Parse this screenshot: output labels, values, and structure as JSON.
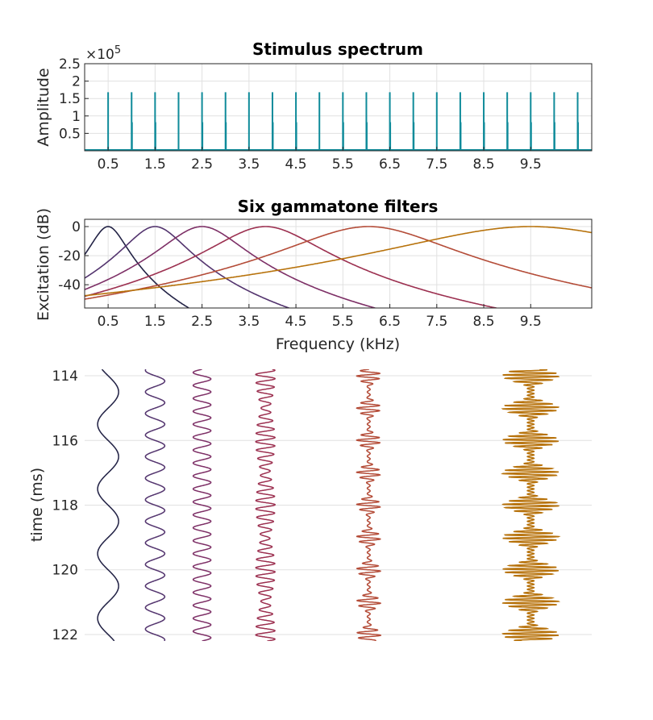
{
  "figure": {
    "spectrum_title": "Stimulus spectrum",
    "filters_title": "Six gammatone filters",
    "spectrum_ylabel": "Amplitude",
    "spectrum_exponent_base": "×10",
    "spectrum_exponent_power": "5",
    "filters_ylabel": "Excitation (dB)",
    "filters_xlabel": "Frequency (kHz)",
    "waveform_ylabel": "time (ms)"
  },
  "chart_data": [
    {
      "type": "bar",
      "title": "Stimulus spectrum",
      "xlabel": "",
      "ylabel": "Amplitude",
      "y_scale_factor": "×10^5",
      "xlim": [
        0,
        10.8
      ],
      "ylim": [
        0,
        250000
      ],
      "xticks": [
        0.5,
        1.5,
        2.5,
        3.5,
        4.5,
        5.5,
        6.5,
        7.5,
        8.5,
        9.5
      ],
      "xtick_labels": [
        "0.5",
        "1.5",
        "2.5",
        "3.5",
        "4.5",
        "5.5",
        "6.5",
        "7.5",
        "8.5",
        "9.5"
      ],
      "yticks": [
        50000,
        100000,
        150000,
        200000,
        250000
      ],
      "ytick_labels": [
        "0.5",
        "1",
        "1.5",
        "2",
        "2.5"
      ],
      "grid": true,
      "color": "#0f8b9a",
      "components": {
        "freq_khz": [
          0.5,
          1.0,
          1.5,
          2.0,
          2.5,
          3.0,
          3.5,
          4.0,
          4.5,
          5.0,
          5.5,
          6.0,
          6.5,
          7.0,
          7.5,
          8.0,
          8.5,
          9.0,
          9.5,
          10.0,
          10.5
        ],
        "amplitude": [
          168000,
          168000,
          168000,
          168000,
          168000,
          168000,
          168000,
          168000,
          168000,
          168000,
          168000,
          168000,
          168000,
          168000,
          168000,
          168000,
          168000,
          168000,
          168000,
          168000,
          168000
        ]
      },
      "secondary_components": {
        "freq_khz": [
          1.0,
          1.5,
          2.5,
          3.0,
          4.0,
          4.5,
          5.5,
          6.0,
          6.5,
          7.0,
          8.0,
          8.5,
          9.0,
          9.5,
          10.0,
          10.5
        ],
        "amplitude": [
          82000,
          82000,
          82000,
          82000,
          82000,
          82000,
          82000,
          82000,
          82000,
          82000,
          82000,
          82000,
          82000,
          82000,
          82000,
          82000
        ]
      }
    },
    {
      "type": "line",
      "title": "Six gammatone filters",
      "xlabel": "Frequency (kHz)",
      "ylabel": "Excitation (dB)",
      "xlim": [
        0,
        10.8
      ],
      "ylim": [
        -56,
        5
      ],
      "xticks": [
        0.5,
        1.5,
        2.5,
        3.5,
        4.5,
        5.5,
        6.5,
        7.5,
        8.5,
        9.5
      ],
      "xtick_labels": [
        "0.5",
        "1.5",
        "2.5",
        "3.5",
        "4.5",
        "5.5",
        "6.5",
        "7.5",
        "8.5",
        "9.5"
      ],
      "yticks": [
        0,
        -20,
        -40
      ],
      "ytick_labels": [
        "0",
        "-20",
        "-40"
      ],
      "grid": true,
      "series": [
        {
          "center_khz": 0.5,
          "bandwidth_khz": 0.35,
          "color": "#232346"
        },
        {
          "center_khz": 1.5,
          "bandwidth_khz": 0.58,
          "color": "#53346e"
        },
        {
          "center_khz": 2.5,
          "bandwidth_khz": 0.75,
          "color": "#7d2f66"
        },
        {
          "center_khz": 3.85,
          "bandwidth_khz": 1.0,
          "color": "#9c3050"
        },
        {
          "center_khz": 6.05,
          "bandwidth_khz": 1.48,
          "color": "#b44c38"
        },
        {
          "center_khz": 9.5,
          "bandwidth_khz": 2.5,
          "color": "#b7720b"
        }
      ]
    },
    {
      "type": "line",
      "title": "",
      "xlabel": "",
      "ylabel": "time (ms)",
      "ylim": [
        113.8,
        122.2
      ],
      "y_reversed": true,
      "yticks": [
        114,
        116,
        118,
        120,
        122
      ],
      "ytick_labels": [
        "114",
        "116",
        "118",
        "120",
        "122"
      ],
      "grid": true,
      "traces": [
        {
          "center_khz": 0.5,
          "carrier_khz": 0.5,
          "beat_khz": 0,
          "color": "#232346"
        },
        {
          "center_khz": 1.5,
          "carrier_khz": 1.5,
          "beat_khz": 0,
          "color": "#53346e"
        },
        {
          "center_khz": 2.5,
          "carrier_khz": 2.5,
          "beat_khz": 0,
          "color": "#7d2f66"
        },
        {
          "center_khz": 3.85,
          "carrier_khz": 3.85,
          "beat_khz": 0.5,
          "color": "#9c3050"
        },
        {
          "center_khz": 6.05,
          "carrier_khz": 6.05,
          "beat_khz": 1.0,
          "color": "#b44c38"
        },
        {
          "center_khz": 9.5,
          "carrier_khz": 9.5,
          "beat_khz": 1.0,
          "color": "#b7720b"
        }
      ]
    }
  ]
}
